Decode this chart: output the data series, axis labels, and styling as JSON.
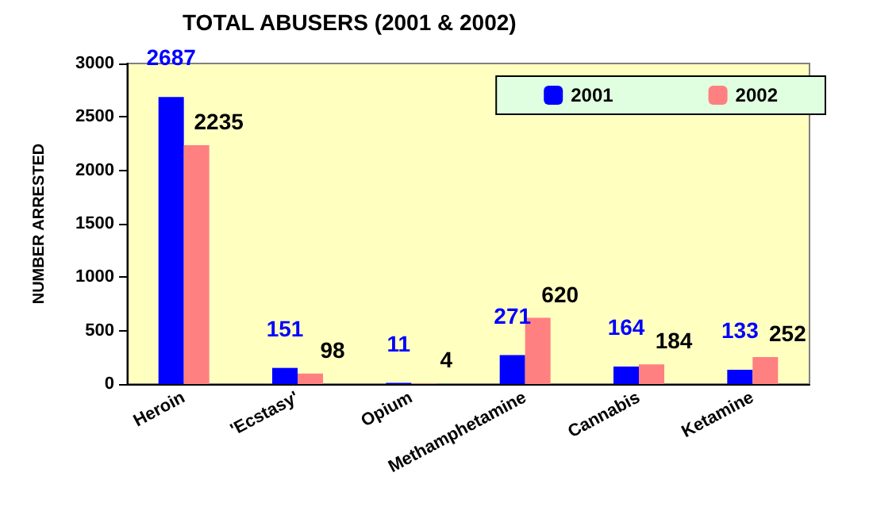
{
  "chart_data": {
    "type": "bar",
    "title": "TOTAL ABUSERS (2001 & 2002)",
    "ylabel": "NUMBER ARRESTED",
    "categories": [
      "Heroin",
      "'Ecstasy'",
      "Opium",
      "Methamphetamine",
      "Cannabis",
      "Ketamine"
    ],
    "series": [
      {
        "name": "2001",
        "color": "#0000ff",
        "values": [
          2687,
          151,
          11,
          271,
          164,
          133
        ]
      },
      {
        "name": "2002",
        "color": "#ff8080",
        "values": [
          2235,
          98,
          4,
          620,
          184,
          252
        ]
      }
    ],
    "ylim": [
      0,
      3000
    ],
    "yticks": [
      0,
      500,
      1000,
      1500,
      2000,
      2500,
      3000
    ],
    "grid": false,
    "legend": "top right",
    "data_labels": true
  }
}
